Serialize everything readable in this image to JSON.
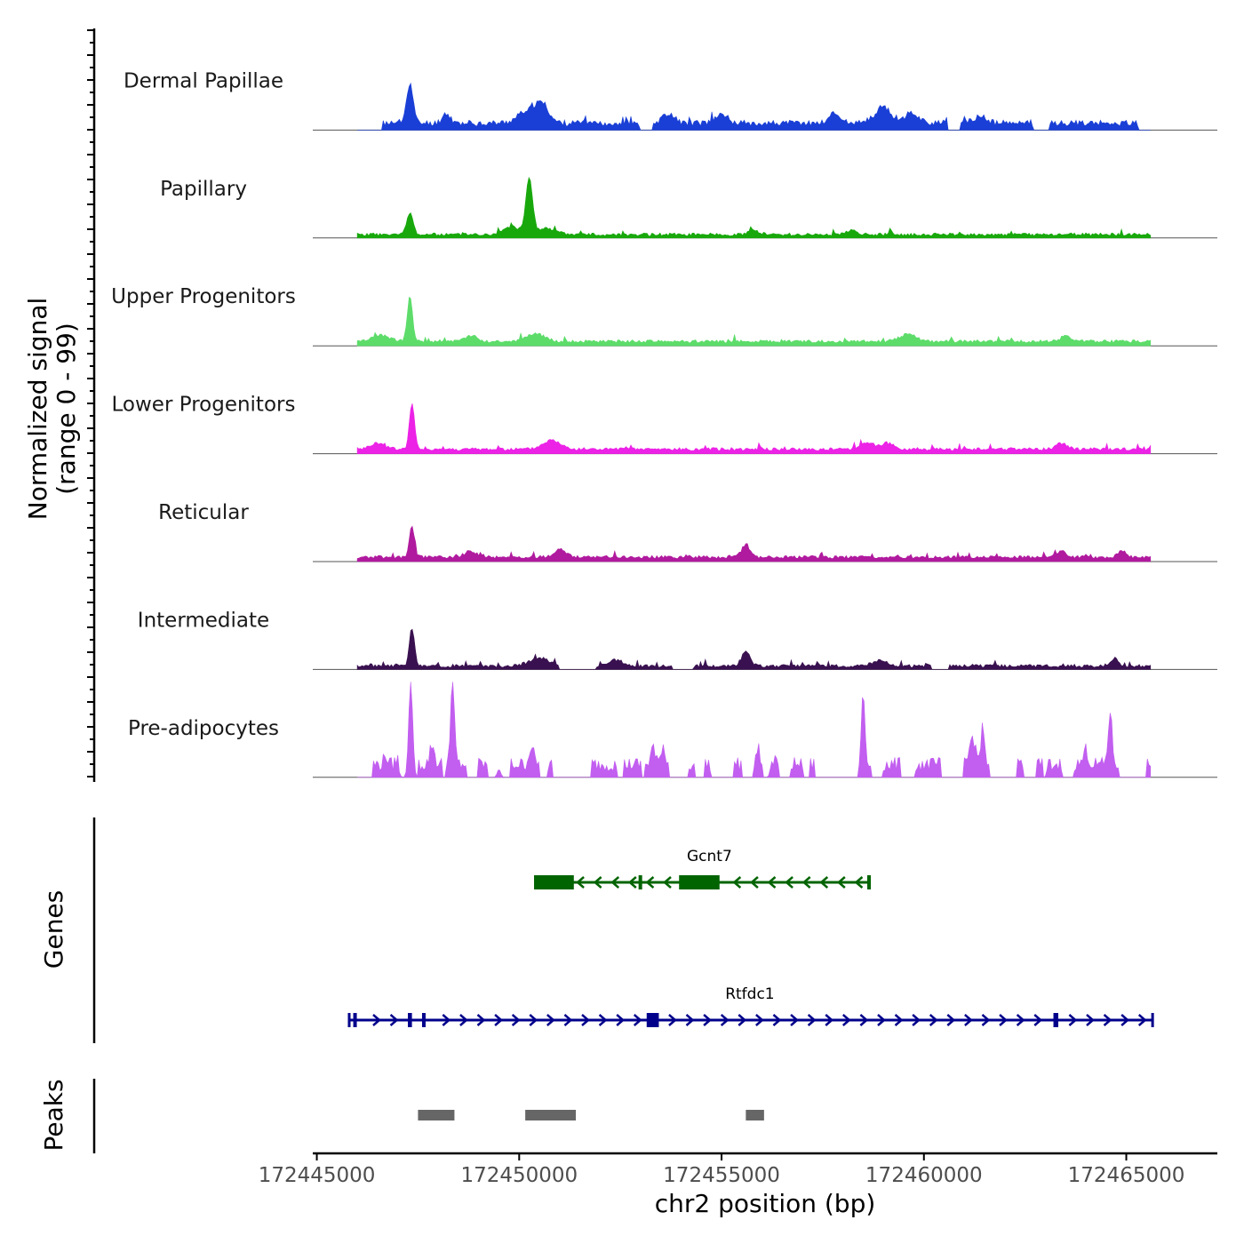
{
  "chart_data": {
    "type": "area",
    "title": "",
    "ylabel_line1": "Normalized signal",
    "ylabel_line2": "(range 0 - 99)",
    "xlabel": "chr2 position (bp)",
    "xlim": [
      172444900,
      172467250
    ],
    "ylim": [
      0,
      99
    ],
    "x_ticks": [
      172445000,
      172450000,
      172455000,
      172460000,
      172465000
    ],
    "x_tick_labels": [
      "172445000",
      "172450000",
      "172455000",
      "172460000",
      "172465000"
    ],
    "signal_start": 172446000,
    "signal_end": 172465600,
    "series": [
      {
        "name": "Dermal Papillae",
        "color": "#1a3fd6",
        "base": 4,
        "noise": 6,
        "seed": 11,
        "peaks": [
          [
            172447300,
            40,
            110
          ],
          [
            172448200,
            10,
            140
          ],
          [
            172450300,
            15,
            380
          ],
          [
            172450600,
            12,
            200
          ],
          [
            172453700,
            10,
            200
          ],
          [
            172455000,
            9,
            220
          ],
          [
            172457800,
            10,
            200
          ],
          [
            172459000,
            14,
            300
          ],
          [
            172459700,
            10,
            250
          ],
          [
            172461400,
            7,
            200
          ]
        ],
        "gaps": [
          [
            172446000,
            172446600
          ],
          [
            172453000,
            172453300
          ],
          [
            172460600,
            172460900
          ],
          [
            172462700,
            172463100
          ],
          [
            172465300,
            172465600
          ]
        ]
      },
      {
        "name": "Papillary",
        "color": "#18a80c",
        "base": 2,
        "noise": 3,
        "seed": 23,
        "peaks": [
          [
            172447300,
            22,
            110
          ],
          [
            172450250,
            55,
            120
          ],
          [
            172449800,
            8,
            300
          ],
          [
            172450700,
            6,
            300
          ],
          [
            172455800,
            4,
            200
          ],
          [
            172458200,
            4,
            200
          ]
        ],
        "gaps": []
      },
      {
        "name": "Upper Progenitors",
        "color": "#5ddc6a",
        "base": 3,
        "noise": 3,
        "seed": 37,
        "peaks": [
          [
            172447300,
            45,
            90
          ],
          [
            172446600,
            6,
            300
          ],
          [
            172448800,
            6,
            200
          ],
          [
            172450400,
            8,
            300
          ],
          [
            172459600,
            7,
            300
          ],
          [
            172463500,
            6,
            150
          ]
        ],
        "gaps": []
      },
      {
        "name": "Lower Progenitors",
        "color": "#ec22e6",
        "base": 3,
        "noise": 3,
        "seed": 41,
        "peaks": [
          [
            172447350,
            45,
            90
          ],
          [
            172450800,
            9,
            300
          ],
          [
            172446500,
            6,
            250
          ],
          [
            172458600,
            7,
            250
          ],
          [
            172459100,
            6,
            200
          ],
          [
            172463400,
            6,
            200
          ]
        ],
        "gaps": []
      },
      {
        "name": "Reticular",
        "color": "#b01a9e",
        "base": 3,
        "noise": 3,
        "seed": 53,
        "peaks": [
          [
            172447350,
            30,
            90
          ],
          [
            172455600,
            12,
            150
          ],
          [
            172451000,
            8,
            200
          ],
          [
            172448800,
            6,
            200
          ],
          [
            172463400,
            6,
            150
          ],
          [
            172464900,
            6,
            150
          ]
        ],
        "gaps": []
      },
      {
        "name": "Intermediate",
        "color": "#3a1150",
        "base": 2,
        "noise": 3,
        "seed": 67,
        "peaks": [
          [
            172447350,
            38,
            90
          ],
          [
            172455600,
            14,
            150
          ],
          [
            172450500,
            8,
            350
          ],
          [
            172452400,
            6,
            250
          ],
          [
            172458900,
            6,
            200
          ],
          [
            172464700,
            8,
            120
          ]
        ],
        "gaps": [
          [
            172451000,
            172451900
          ],
          [
            172453800,
            172454300
          ],
          [
            172460200,
            172460600
          ]
        ]
      },
      {
        "name": "Pre-adipocytes",
        "color": "#c25ef0",
        "base": 0,
        "noise": 0,
        "seed": 79,
        "peaks": [
          [
            172447320,
            95,
            70
          ],
          [
            172448350,
            80,
            70
          ],
          [
            172447850,
            20,
            80
          ],
          [
            172458500,
            70,
            60
          ],
          [
            172461200,
            28,
            100
          ],
          [
            172461450,
            35,
            70
          ],
          [
            172464600,
            52,
            70
          ],
          [
            172463100,
            20,
            60
          ],
          [
            172464000,
            15,
            80
          ],
          [
            172450300,
            18,
            80
          ],
          [
            172453300,
            18,
            70
          ],
          [
            172453550,
            20,
            70
          ],
          [
            172455900,
            16,
            60
          ],
          [
            172456250,
            16,
            60
          ],
          [
            172446700,
            10,
            60
          ],
          [
            172447000,
            8,
            60
          ],
          [
            172449500,
            8,
            60
          ]
        ],
        "clusters": [
          [
            172446400,
            172447000
          ],
          [
            172447500,
            172448100
          ],
          [
            172448200,
            172448700
          ],
          [
            172449000,
            172449200
          ],
          [
            172449800,
            172450500
          ],
          [
            172450700,
            172450800
          ],
          [
            172451800,
            172452400
          ],
          [
            172452600,
            172453000
          ],
          [
            172453100,
            172453700
          ],
          [
            172454200,
            172454350
          ],
          [
            172454600,
            172454750
          ],
          [
            172455300,
            172455500
          ],
          [
            172455800,
            172456000
          ],
          [
            172456300,
            172456400
          ],
          [
            172456700,
            172457000
          ],
          [
            172457200,
            172457300
          ],
          [
            172458400,
            172458700
          ],
          [
            172459000,
            172459400
          ],
          [
            172459800,
            172460400
          ],
          [
            172461000,
            172461600
          ],
          [
            172462300,
            172462450
          ],
          [
            172462800,
            172462950
          ],
          [
            172463200,
            172463400
          ],
          [
            172463700,
            172464800
          ],
          [
            172465500,
            172465600
          ]
        ]
      }
    ],
    "genes": [
      {
        "name": "Gcnt7",
        "strand": "-",
        "color": "#006400",
        "start": 172450400,
        "end": 172458650,
        "exons": [
          [
            172450400,
            172451350
          ],
          [
            172453950,
            172454950
          ],
          [
            172452950,
            172452990
          ],
          [
            172458600,
            172458650
          ]
        ]
      },
      {
        "name": "Rtfdc1",
        "strand": "+",
        "color": "#00008b",
        "start": 172445800,
        "end": 172465650,
        "exons": [
          [
            172445900,
            172445980
          ],
          [
            172447250,
            172447350
          ],
          [
            172447600,
            172447680
          ],
          [
            172453150,
            172453450
          ],
          [
            172463200,
            172463320
          ]
        ]
      }
    ],
    "peaks_label": "Peaks",
    "genes_label": "Genes",
    "peak_regions": [
      [
        172447500,
        172448400
      ],
      [
        172450150,
        172451400
      ],
      [
        172455600,
        172456050
      ]
    ]
  }
}
